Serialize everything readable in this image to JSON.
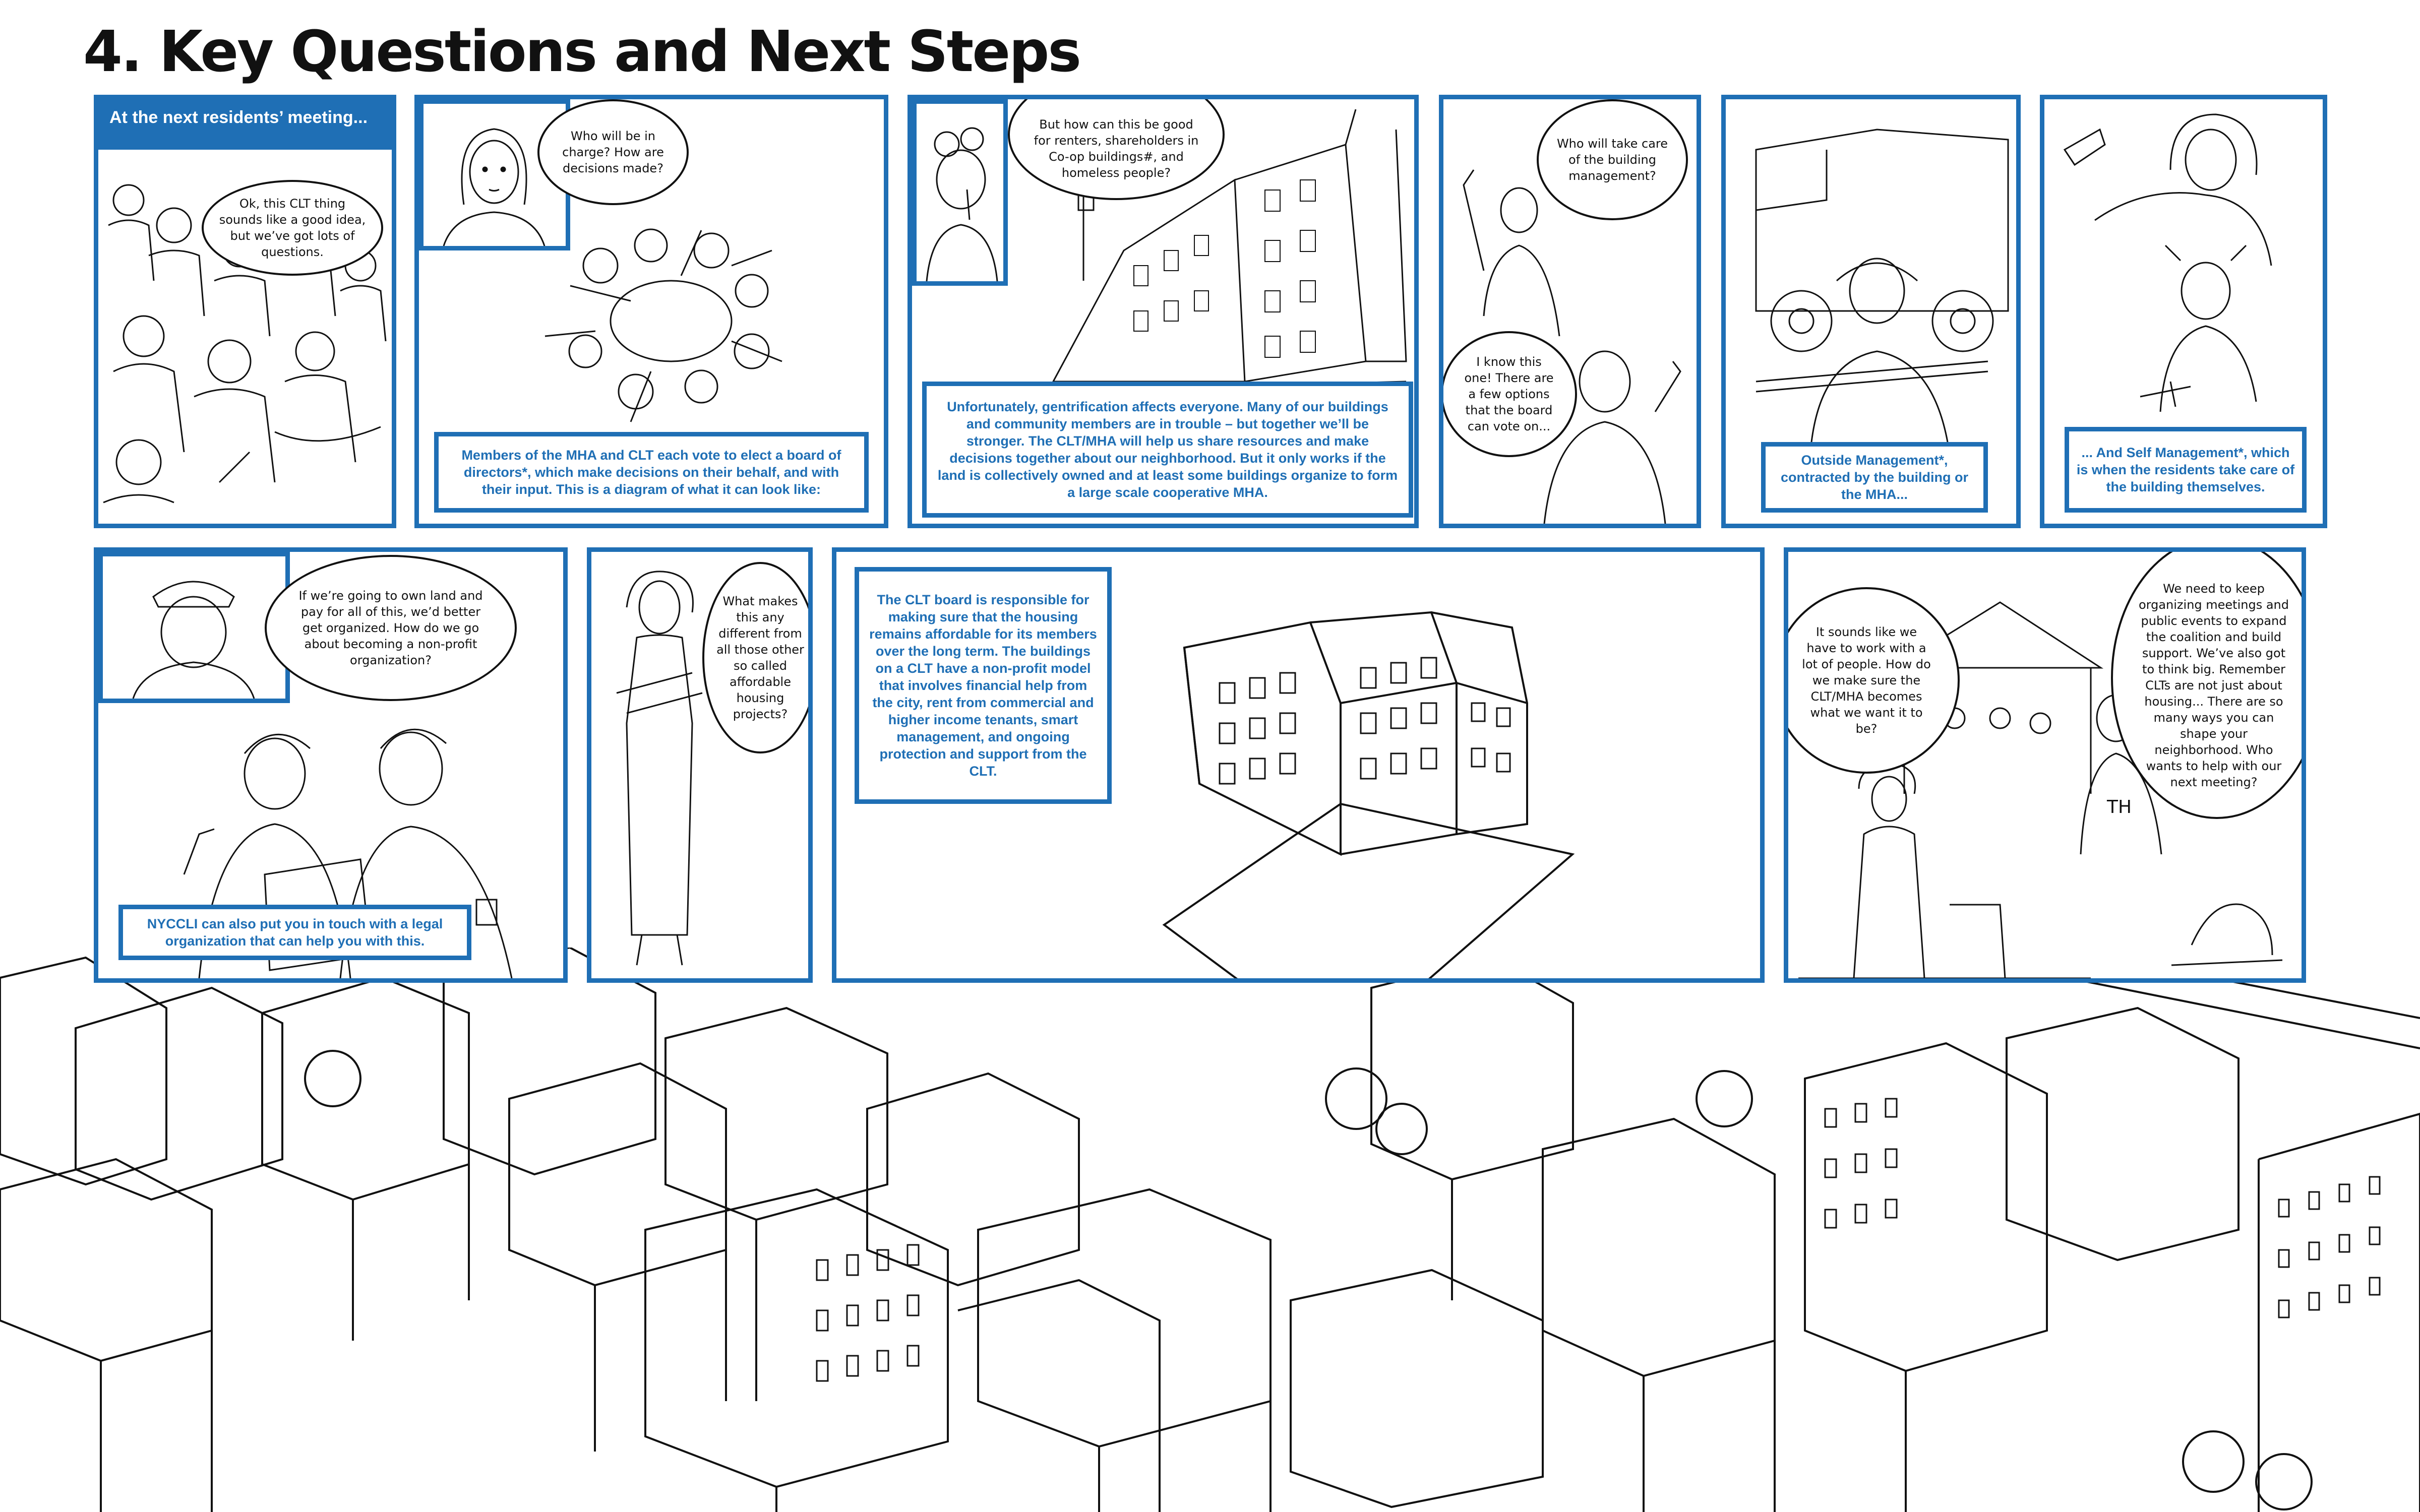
{
  "title": "4. Key Questions and Next Steps",
  "panels": {
    "meeting": {
      "header": "At the next residents’ meeting...",
      "bubble": "Ok, this CLT thing sounds like a good idea, but we’ve got lots of questions."
    },
    "board": {
      "bubble": "Who will be in charge? How are decisions made?",
      "caption": "Members of the MHA and CLT each vote to elect a board of directors*, which make decisions on their behalf, and with their input. This is a diagram of what it can look like:"
    },
    "renters": {
      "bubble": "But how can this be good for renters, shareholders in Co-op buildings#, and homeless people?",
      "caption": "Unfortunately, gentrification affects everyone. Many of our buildings and community members are in trouble – but together we’ll be stronger. The CLT/MHA will help us share resources and make decisions together about our neighborhood. But it only works if the land is collectively owned and at least some buildings organize to form a large scale cooperative MHA."
    },
    "management": {
      "bubble_question": "Who will take care of the building management?",
      "bubble_answer": "I know this one! There are a few options that the board can vote on..."
    },
    "outside": {
      "caption": "Outside Management*, contracted by the building or the MHA..."
    },
    "self": {
      "caption": "... And Self Management*, which is when the residents take care of the building themselves."
    },
    "nonprofit": {
      "bubble": "If we’re going to own land and pay for all of this, we’d better get organized. How do we go about becoming a non-profit organization?",
      "caption": "NYCCLI can also put you in touch with a legal organization that can help you with this."
    },
    "affordable": {
      "bubble": "What makes this any different from all those other so called affordable housing projects?"
    },
    "clt_board": {
      "caption": "The CLT board is responsible for making sure that the housing remains affordable for its members over the long term. The buildings on a CLT have a non-profit model that involves financial help from the city, rent from commercial and higher income tenants, smart management, and ongoing protection and support from the CLT."
    },
    "organizing": {
      "bubble_left": "It sounds like we have to work with a lot of people. How do we make sure the CLT/MHA becomes what we want it to be?",
      "bubble_right": "We need to keep organizing meetings and public events to expand the coalition and build support. We’ve also got to think big. Remember CLTs are not just about housing... There are so many ways you can shape your neighborhood. Who wants to help with our next meeting?",
      "sign": "TH"
    }
  },
  "colors": {
    "accent": "#1f6fb5",
    "ink": "#111111",
    "paper": "#ffffff"
  }
}
